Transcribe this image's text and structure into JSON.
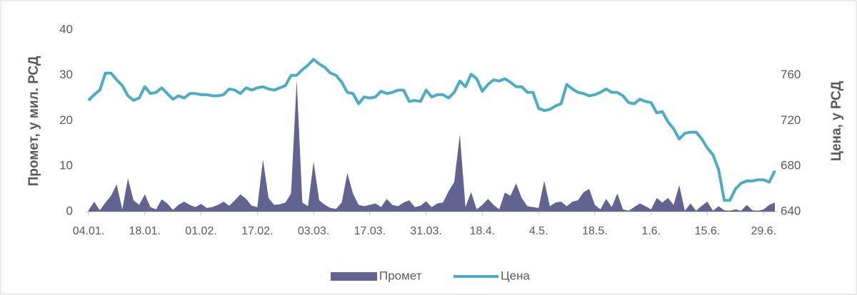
{
  "chart_data": {
    "type": "area_line",
    "y_label": "Промет, у мил. РСД",
    "y2_label": "Цена, у РСД",
    "categories": [
      "04.01.",
      null,
      null,
      null,
      null,
      null,
      null,
      null,
      null,
      null,
      "18.01.",
      null,
      null,
      null,
      null,
      null,
      null,
      null,
      null,
      null,
      "01.02.",
      null,
      null,
      null,
      null,
      null,
      null,
      null,
      null,
      null,
      "17.02.",
      null,
      null,
      null,
      null,
      null,
      null,
      null,
      null,
      null,
      "03.03.",
      null,
      null,
      null,
      null,
      null,
      null,
      null,
      null,
      null,
      "17.03.",
      null,
      null,
      null,
      null,
      null,
      null,
      null,
      null,
      null,
      "31.03.",
      null,
      null,
      null,
      null,
      null,
      null,
      null,
      null,
      null,
      "18.4.",
      null,
      null,
      null,
      null,
      null,
      null,
      null,
      null,
      null,
      "4.5.",
      null,
      null,
      null,
      null,
      null,
      null,
      null,
      null,
      null,
      "18.5.",
      null,
      null,
      null,
      null,
      null,
      null,
      null,
      null,
      null,
      "1.6.",
      null,
      null,
      null,
      null,
      null,
      null,
      null,
      null,
      null,
      "15.6.",
      null,
      null,
      null,
      null,
      null,
      null,
      null,
      null,
      null,
      "29.6.",
      null,
      null
    ],
    "series": [
      {
        "name": "Промет",
        "color": "#636391",
        "axis": "y",
        "values": [
          0.3,
          2.2,
          0.3,
          2,
          3.5,
          6,
          0.5,
          7.3,
          2.5,
          1.5,
          3.8,
          1,
          0.5,
          2.7,
          1.8,
          0.4,
          1.5,
          2.2,
          1.5,
          1,
          1.7,
          0.8,
          1,
          1.5,
          2.2,
          1.3,
          2.5,
          3.8,
          2.8,
          1.3,
          1,
          11.5,
          3,
          1.5,
          1.6,
          2,
          4,
          29,
          2,
          1.2,
          11,
          2.5,
          1.5,
          0.8,
          0.6,
          2,
          8.5,
          4,
          1.5,
          1.2,
          1.5,
          1.8,
          1,
          2.8,
          1.5,
          1.2,
          2,
          2.5,
          1,
          1.3,
          2.3,
          1,
          1.8,
          2,
          4.5,
          6.5,
          17,
          1,
          4.3,
          0.5,
          1.5,
          2.8,
          1.5,
          0.5,
          4.2,
          3.5,
          6.2,
          3,
          1.2,
          1,
          0.8,
          6.8,
          1.2,
          2,
          2.2,
          1.2,
          2.2,
          2.5,
          4.3,
          5,
          1.5,
          0.5,
          2.8,
          1,
          4,
          0.5,
          0.2,
          1,
          1.8,
          1.2,
          0.5,
          3,
          2,
          3,
          1.5,
          5.8,
          0.2,
          1.8,
          0.2,
          1.3,
          2.2,
          0.2,
          1.2,
          0.3,
          0.2,
          0.5,
          0.2,
          1.5,
          0.3,
          0.2,
          0.5,
          1.5,
          2
        ]
      },
      {
        "name": "Цена",
        "color": "#4bacc6",
        "axis": "y2",
        "values": [
          738,
          743,
          747,
          762,
          762,
          756,
          751,
          742,
          738,
          740,
          750,
          744,
          745,
          749,
          744,
          739,
          742,
          740,
          744,
          744,
          743,
          743,
          742,
          742,
          743,
          748,
          747,
          744,
          749,
          747,
          749,
          750,
          748,
          747,
          749,
          751,
          760,
          760,
          765,
          769,
          774,
          770,
          767,
          762,
          760,
          754,
          745,
          744,
          735,
          741,
          740,
          741,
          746,
          744,
          745,
          747,
          747,
          737,
          738,
          737,
          747,
          741,
          743,
          743,
          740,
          745,
          755,
          750,
          761,
          757,
          746,
          752,
          756,
          755,
          757,
          754,
          750,
          750,
          745,
          745,
          731,
          729,
          730,
          733,
          735,
          752,
          748,
          745,
          744,
          742,
          743,
          745,
          748,
          745,
          745,
          742,
          736,
          735,
          739,
          737,
          736,
          727,
          728,
          719,
          713,
          704,
          709,
          710,
          710,
          704,
          696,
          690,
          677,
          650,
          650,
          660,
          665,
          667,
          667,
          668,
          668,
          666,
          676
        ]
      }
    ],
    "ylim": [
      0,
      40
    ],
    "yticks": [
      0,
      10,
      20,
      30,
      40
    ],
    "y2lim": [
      640,
      800
    ],
    "y2ticks": [
      640,
      680,
      720,
      760
    ],
    "legend": "bottom"
  }
}
